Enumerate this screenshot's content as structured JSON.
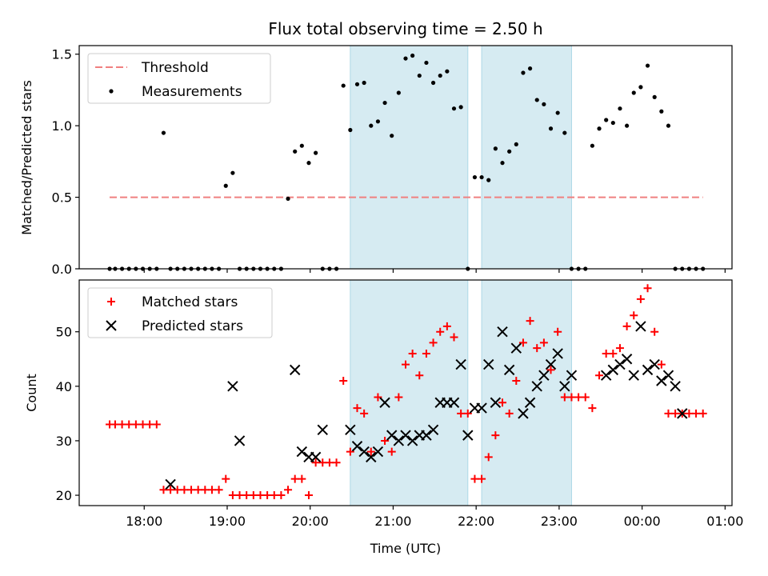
{
  "chart_data": [
    {
      "type": "scatter",
      "title": "Flux total observing time = 2.50 h",
      "xlabel": "",
      "ylabel": "Matched/Predicted stars",
      "xlim": [
        "17:13",
        "01:05"
      ],
      "ylim": [
        0,
        1.56
      ],
      "yticks": [
        0.0,
        0.5,
        1.0,
        1.5
      ],
      "ytick_labels": [
        "0.0",
        "0.5",
        "1.0",
        "1.5"
      ],
      "xticks": [
        "18:00",
        "19:00",
        "20:00",
        "21:00",
        "22:00",
        "23:00",
        "00:00",
        "01:00"
      ],
      "legend_position": "upper-left",
      "highlight_spans": [
        {
          "start": "20:29",
          "end": "21:54"
        },
        {
          "start": "22:04",
          "end": "23:09"
        }
      ],
      "series": [
        {
          "name": "Threshold",
          "kind": "line",
          "color": "#f08080",
          "x": [
            "17:35",
            "00:44"
          ],
          "y": [
            0.5,
            0.5
          ]
        },
        {
          "name": "Measurements",
          "kind": "scatter",
          "color": "#000000",
          "x": [
            "17:35",
            "17:39",
            "17:44",
            "17:49",
            "17:54",
            "17:59",
            "18:04",
            "18:09",
            "18:14",
            "18:19",
            "18:24",
            "18:29",
            "18:34",
            "18:39",
            "18:44",
            "18:49",
            "18:54",
            "18:59",
            "19:04",
            "19:09",
            "19:14",
            "19:19",
            "19:24",
            "19:29",
            "19:34",
            "19:39",
            "19:44",
            "19:49",
            "19:54",
            "19:59",
            "20:04",
            "20:09",
            "20:14",
            "20:19",
            "20:24",
            "20:29",
            "20:34",
            "20:39",
            "20:44",
            "20:49",
            "20:54",
            "20:59",
            "21:04",
            "21:09",
            "21:14",
            "21:19",
            "21:24",
            "21:29",
            "21:34",
            "21:39",
            "21:44",
            "21:49",
            "21:54",
            "21:59",
            "22:04",
            "22:09",
            "22:14",
            "22:19",
            "22:24",
            "22:29",
            "22:34",
            "22:39",
            "22:44",
            "22:49",
            "22:54",
            "22:59",
            "23:04",
            "23:09",
            "23:14",
            "23:19",
            "23:24",
            "23:29",
            "23:34",
            "23:39",
            "23:44",
            "23:49",
            "23:54",
            "23:59",
            "00:04",
            "00:09",
            "00:14",
            "00:19",
            "00:24",
            "00:29",
            "00:34",
            "00:39",
            "00:44"
          ],
          "y": [
            0,
            0,
            0,
            0,
            0,
            0,
            0,
            0,
            0.95,
            0,
            0,
            0,
            0,
            0,
            0,
            0,
            0,
            0.58,
            0.67,
            0,
            0,
            0,
            0,
            0,
            0,
            0,
            0.49,
            0.82,
            0.86,
            0.74,
            0.81,
            0,
            0,
            0,
            1.28,
            0.97,
            1.29,
            1.3,
            1.0,
            1.03,
            1.16,
            0.93,
            1.23,
            1.47,
            1.49,
            1.35,
            1.44,
            1.3,
            1.35,
            1.38,
            1.12,
            1.13,
            0,
            0.64,
            0.64,
            0.62,
            0.84,
            0.74,
            0.82,
            0.87,
            1.37,
            1.4,
            1.18,
            1.15,
            0.98,
            1.09,
            0.95,
            0,
            0,
            0,
            0.86,
            0.98,
            1.04,
            1.02,
            1.12,
            1.0,
            1.23,
            1.27,
            1.42,
            1.2,
            1.1,
            1.0,
            0,
            0,
            0,
            0,
            0
          ]
        }
      ]
    },
    {
      "type": "scatter",
      "title": "",
      "xlabel": "Time (UTC)",
      "ylabel": "Count",
      "xlim": [
        "17:13",
        "01:05"
      ],
      "ylim": [
        18.1,
        59.5
      ],
      "yticks": [
        20,
        30,
        40,
        50
      ],
      "ytick_labels": [
        "20",
        "30",
        "40",
        "50"
      ],
      "xticks": [
        "18:00",
        "19:00",
        "20:00",
        "21:00",
        "22:00",
        "23:00",
        "00:00",
        "01:00"
      ],
      "legend_position": "upper-left",
      "highlight_spans": [
        {
          "start": "20:29",
          "end": "21:54"
        },
        {
          "start": "22:04",
          "end": "23:09"
        }
      ],
      "series": [
        {
          "name": "Matched stars",
          "marker": "plus",
          "color": "#ff0000",
          "x": [
            "17:35",
            "17:39",
            "17:44",
            "17:49",
            "17:54",
            "17:59",
            "18:04",
            "18:09",
            "18:14",
            "18:19",
            "18:24",
            "18:29",
            "18:34",
            "18:39",
            "18:44",
            "18:49",
            "18:54",
            "18:59",
            "19:04",
            "19:09",
            "19:14",
            "19:19",
            "19:24",
            "19:29",
            "19:34",
            "19:39",
            "19:44",
            "19:49",
            "19:54",
            "19:59",
            "20:04",
            "20:09",
            "20:14",
            "20:19",
            "20:24",
            "20:29",
            "20:34",
            "20:39",
            "20:44",
            "20:49",
            "20:54",
            "20:59",
            "21:04",
            "21:09",
            "21:14",
            "21:19",
            "21:24",
            "21:29",
            "21:34",
            "21:39",
            "21:44",
            "21:49",
            "21:54",
            "21:59",
            "22:04",
            "22:09",
            "22:14",
            "22:19",
            "22:24",
            "22:29",
            "22:34",
            "22:39",
            "22:44",
            "22:49",
            "22:54",
            "22:59",
            "23:04",
            "23:09",
            "23:14",
            "23:19",
            "23:24",
            "23:29",
            "23:34",
            "23:39",
            "23:44",
            "23:49",
            "23:54",
            "23:59",
            "00:04",
            "00:09",
            "00:14",
            "00:19",
            "00:24",
            "00:29",
            "00:34",
            "00:39",
            "00:44"
          ],
          "y": [
            33,
            33,
            33,
            33,
            33,
            33,
            33,
            33,
            21,
            21,
            21,
            21,
            21,
            21,
            21,
            21,
            21,
            23,
            20,
            20,
            20,
            20,
            20,
            20,
            20,
            20,
            21,
            23,
            23,
            20,
            26,
            26,
            26,
            26,
            41,
            28,
            36,
            35,
            28,
            38,
            30,
            28,
            38,
            44,
            46,
            42,
            46,
            48,
            50,
            51,
            49,
            35,
            35,
            23,
            23,
            27,
            31,
            37,
            35,
            41,
            48,
            52,
            47,
            48,
            43,
            50,
            38,
            38,
            38,
            38,
            36,
            42,
            46,
            46,
            47,
            51,
            53,
            56,
            58,
            50,
            44,
            35,
            35,
            35,
            35,
            35,
            35
          ]
        },
        {
          "name": "Predicted stars",
          "marker": "x",
          "color": "#000000",
          "x": [
            "18:19",
            "19:04",
            "19:09",
            "19:49",
            "19:54",
            "19:59",
            "20:04",
            "20:09",
            "20:29",
            "20:34",
            "20:39",
            "20:44",
            "20:49",
            "20:54",
            "20:59",
            "21:04",
            "21:09",
            "21:14",
            "21:19",
            "21:24",
            "21:29",
            "21:34",
            "21:39",
            "21:44",
            "21:49",
            "21:54",
            "21:59",
            "22:04",
            "22:09",
            "22:14",
            "22:19",
            "22:24",
            "22:29",
            "22:34",
            "22:39",
            "22:44",
            "22:49",
            "22:54",
            "22:59",
            "23:04",
            "23:09",
            "23:34",
            "23:39",
            "23:44",
            "23:49",
            "23:54",
            "23:59",
            "00:04",
            "00:09",
            "00:14",
            "00:19",
            "00:24",
            "00:29"
          ],
          "y": [
            22,
            40,
            30,
            43,
            28,
            27,
            27,
            32,
            32,
            29,
            28,
            27,
            28,
            37,
            31,
            30,
            31,
            30,
            31,
            31,
            32,
            37,
            37,
            37,
            44,
            31,
            36,
            36,
            44,
            37,
            50,
            43,
            47,
            35,
            37,
            40,
            42,
            44,
            46,
            40,
            42,
            42,
            43,
            44,
            45,
            42,
            51,
            43,
            44,
            41,
            42,
            40,
            35
          ]
        }
      ]
    }
  ]
}
